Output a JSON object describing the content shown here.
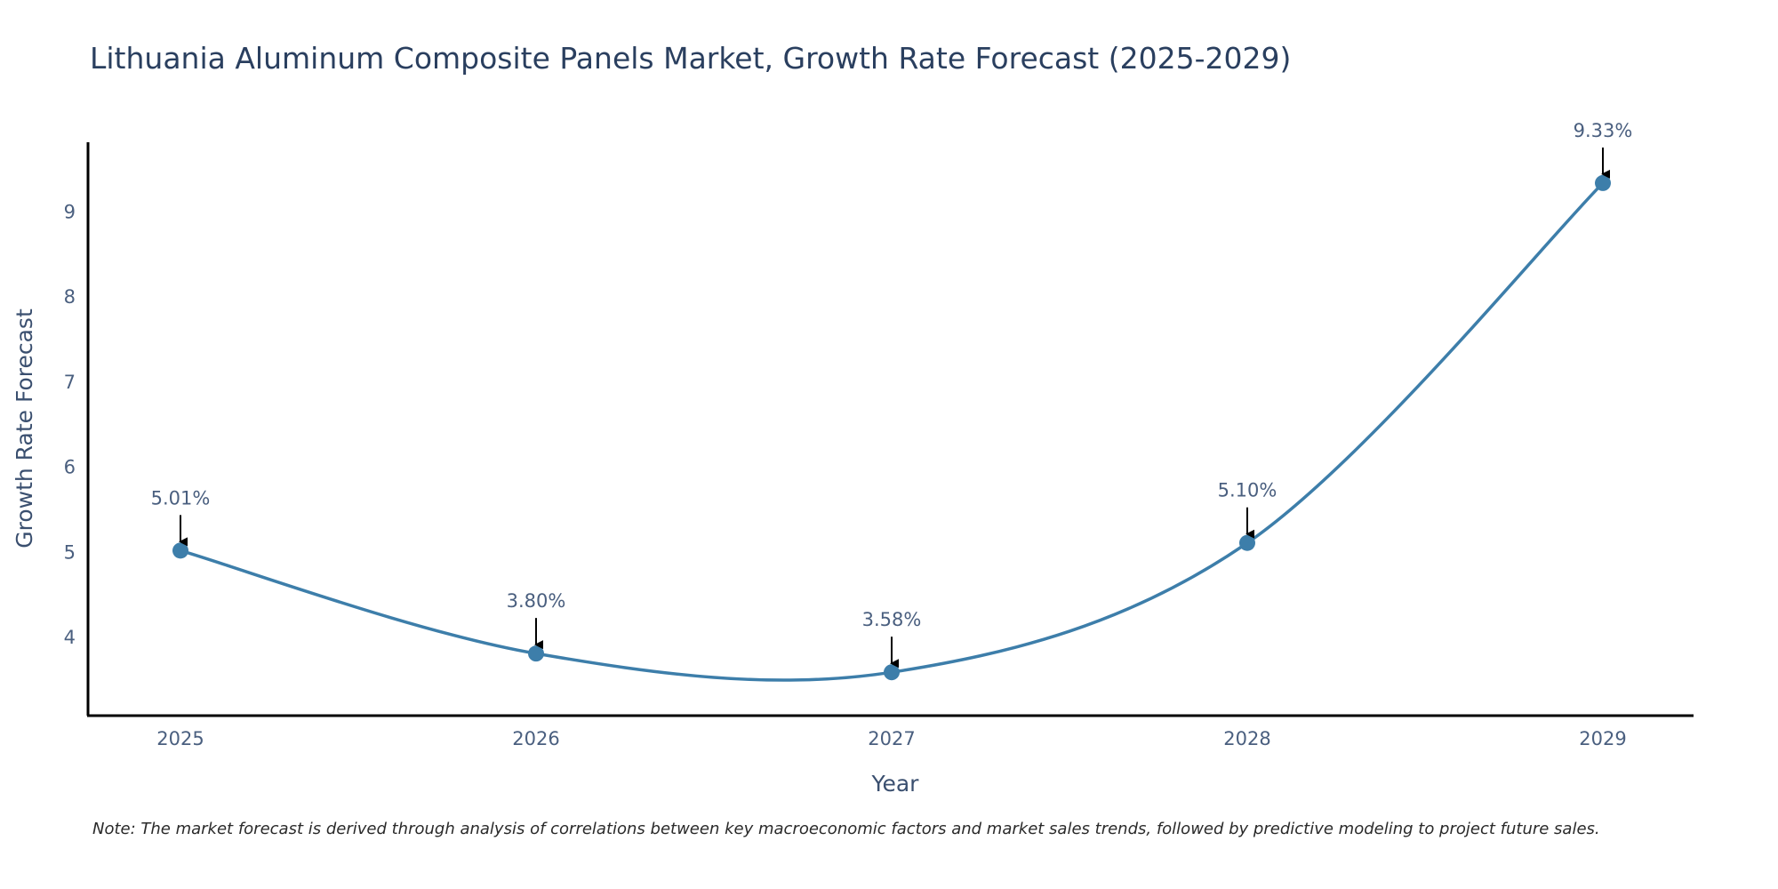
{
  "chart_data": {
    "type": "line",
    "title": "Lithuania Aluminum Composite Panels Market, Growth Rate Forecast (2025-2029)",
    "xlabel": "Year",
    "ylabel": "Growth Rate Forecast",
    "categories": [
      "2025",
      "2026",
      "2027",
      "2028",
      "2029"
    ],
    "values": [
      5.01,
      3.8,
      3.58,
      5.1,
      9.33
    ],
    "data_labels": [
      "5.01%",
      "3.80%",
      "3.58%",
      "5.10%",
      "9.33%"
    ],
    "y_ticks": [
      4,
      5,
      6,
      7,
      8,
      9
    ],
    "y_tick_labels": [
      "4",
      "5",
      "6",
      "7",
      "8",
      "9"
    ],
    "ylim": [
      3.07,
      9.81
    ],
    "grid": false,
    "line_shape": "spline",
    "line_color": "#3d7eaa",
    "marker_color": "#3d7eaa",
    "arrow_color": "#000000",
    "note": "Note: The market forecast is derived through analysis of correlations between key macroeconomic factors and market sales trends, followed by predictive modeling to project future sales."
  }
}
